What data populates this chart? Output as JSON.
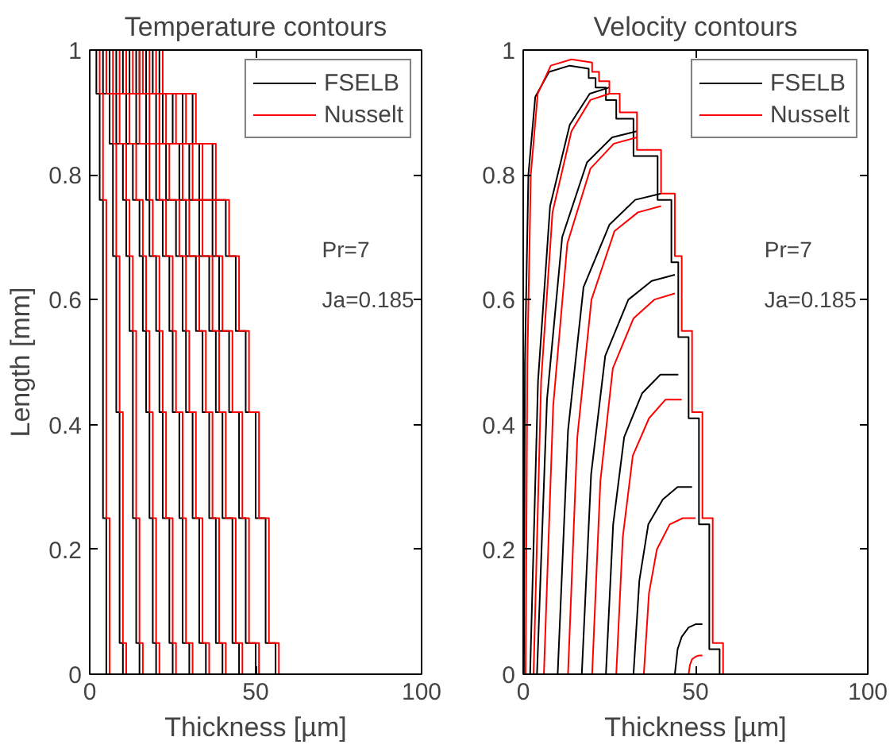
{
  "chart_data": [
    {
      "type": "line",
      "title": "Temperature contours",
      "xlabel": "Thickness [µm]",
      "ylabel": "Length [mm]",
      "xlim": [
        0,
        100
      ],
      "xticks": [
        0,
        50,
        100
      ],
      "ylim": [
        0,
        1
      ],
      "yticks": [
        0,
        0.2,
        0.4,
        0.6,
        0.8,
        1
      ],
      "grid": false,
      "legend": "top right",
      "annotations": [
        "Pr=7",
        "Ja=0.185"
      ],
      "series": [
        {
          "name": "FSELB",
          "color": "#000000",
          "x": [
            5,
            5,
            5,
            5,
            4,
            4,
            4,
            4,
            4,
            4,
            4,
            4,
            3,
            3,
            3,
            3,
            2,
            2
          ],
          "values": [
            0,
            0.05,
            0.05,
            0.25,
            0.25,
            0.42,
            0.42,
            0.55,
            0.55,
            0.67,
            0.67,
            0.76,
            0.76,
            0.85,
            0.85,
            0.93,
            0.93,
            1
          ]
        },
        {
          "color": "#000000",
          "x": [
            10,
            10,
            9,
            9,
            9,
            9,
            8,
            8,
            8,
            8,
            7,
            7,
            7,
            7,
            6,
            6,
            4,
            4
          ],
          "values": [
            0,
            0.05,
            0.05,
            0.25,
            0.25,
            0.42,
            0.42,
            0.55,
            0.55,
            0.67,
            0.67,
            0.76,
            0.76,
            0.85,
            0.85,
            0.93,
            0.93,
            1
          ]
        },
        {
          "color": "#000000",
          "x": [
            15,
            15,
            14,
            14,
            13,
            13,
            13,
            13,
            12,
            12,
            11,
            11,
            10,
            10,
            8,
            8,
            6,
            6
          ],
          "values": [
            0,
            0.05,
            0.05,
            0.25,
            0.25,
            0.42,
            0.42,
            0.55,
            0.55,
            0.67,
            0.67,
            0.76,
            0.76,
            0.85,
            0.85,
            0.93,
            0.93,
            1
          ]
        },
        {
          "color": "#000000",
          "x": [
            20,
            20,
            19,
            19,
            18,
            18,
            17,
            17,
            16,
            16,
            15,
            15,
            13,
            13,
            11,
            11,
            8,
            8
          ],
          "values": [
            0,
            0.05,
            0.05,
            0.25,
            0.25,
            0.42,
            0.42,
            0.55,
            0.55,
            0.67,
            0.67,
            0.76,
            0.76,
            0.85,
            0.85,
            0.93,
            0.93,
            1
          ]
        },
        {
          "color": "#000000",
          "x": [
            25,
            25,
            24,
            24,
            22,
            22,
            21,
            21,
            20,
            20,
            18,
            18,
            17,
            17,
            14,
            14,
            10,
            10
          ],
          "values": [
            0,
            0.05,
            0.05,
            0.25,
            0.25,
            0.42,
            0.42,
            0.55,
            0.55,
            0.67,
            0.67,
            0.76,
            0.76,
            0.85,
            0.85,
            0.93,
            0.93,
            1
          ]
        },
        {
          "color": "#000000",
          "x": [
            30,
            30,
            28,
            28,
            27,
            27,
            25,
            25,
            24,
            24,
            22,
            22,
            20,
            20,
            17,
            17,
            12,
            12
          ],
          "values": [
            0,
            0.05,
            0.05,
            0.25,
            0.25,
            0.42,
            0.42,
            0.55,
            0.55,
            0.67,
            0.67,
            0.76,
            0.76,
            0.85,
            0.85,
            0.93,
            0.93,
            1
          ]
        },
        {
          "color": "#000000",
          "x": [
            35,
            35,
            33,
            33,
            31,
            31,
            29,
            29,
            28,
            28,
            26,
            26,
            23,
            23,
            20,
            20,
            14,
            14
          ],
          "values": [
            0,
            0.05,
            0.05,
            0.25,
            0.25,
            0.42,
            0.42,
            0.55,
            0.55,
            0.67,
            0.67,
            0.76,
            0.76,
            0.85,
            0.85,
            0.93,
            0.93,
            1
          ]
        },
        {
          "color": "#000000",
          "x": [
            40,
            40,
            38,
            38,
            36,
            36,
            34,
            34,
            32,
            32,
            29,
            29,
            27,
            27,
            22,
            22,
            15,
            15
          ],
          "values": [
            0,
            0.05,
            0.05,
            0.25,
            0.25,
            0.42,
            0.42,
            0.55,
            0.55,
            0.67,
            0.67,
            0.76,
            0.76,
            0.85,
            0.85,
            0.93,
            0.93,
            1
          ]
        },
        {
          "color": "#000000",
          "x": [
            45,
            45,
            43,
            43,
            40,
            40,
            38,
            38,
            36,
            36,
            33,
            33,
            30,
            30,
            25,
            25,
            17,
            17
          ],
          "values": [
            0,
            0.05,
            0.05,
            0.25,
            0.25,
            0.42,
            0.42,
            0.55,
            0.55,
            0.67,
            0.67,
            0.76,
            0.76,
            0.85,
            0.85,
            0.93,
            0.93,
            1
          ]
        },
        {
          "color": "#000000",
          "x": [
            50,
            50,
            47,
            47,
            45,
            45,
            42,
            42,
            39,
            39,
            37,
            37,
            33,
            33,
            28,
            28,
            19,
            19
          ],
          "values": [
            0,
            0.05,
            0.05,
            0.25,
            0.25,
            0.42,
            0.42,
            0.55,
            0.55,
            0.67,
            0.67,
            0.76,
            0.76,
            0.85,
            0.85,
            0.93,
            0.93,
            1
          ]
        },
        {
          "color": "#000000",
          "x": [
            56,
            56,
            53,
            53,
            50,
            50,
            47,
            47,
            44,
            44,
            41,
            41,
            37,
            37,
            31,
            31,
            21,
            21,
            3
          ],
          "values": [
            0,
            0.05,
            0.05,
            0.25,
            0.25,
            0.42,
            0.42,
            0.55,
            0.55,
            0.67,
            0.67,
            0.76,
            0.76,
            0.85,
            0.85,
            0.93,
            0.93,
            1,
            1
          ]
        },
        {
          "name": "Nusselt",
          "color": "#ff0000",
          "x": [
            6,
            6,
            6,
            6,
            5,
            5,
            5,
            5,
            5,
            5,
            5,
            5,
            4,
            4,
            4,
            4,
            3,
            3
          ],
          "values": [
            0,
            0.05,
            0.05,
            0.25,
            0.25,
            0.42,
            0.42,
            0.55,
            0.55,
            0.67,
            0.67,
            0.76,
            0.76,
            0.85,
            0.85,
            0.93,
            0.93,
            1
          ]
        },
        {
          "color": "#ff0000",
          "x": [
            11,
            11,
            10,
            10,
            10,
            10,
            9,
            9,
            9,
            9,
            8,
            8,
            8,
            8,
            7,
            7,
            5,
            5
          ],
          "values": [
            0,
            0.05,
            0.05,
            0.25,
            0.25,
            0.42,
            0.42,
            0.55,
            0.55,
            0.67,
            0.67,
            0.76,
            0.76,
            0.85,
            0.85,
            0.93,
            0.93,
            1
          ]
        },
        {
          "color": "#ff0000",
          "x": [
            16,
            16,
            15,
            15,
            14,
            14,
            14,
            14,
            13,
            13,
            12,
            12,
            11,
            11,
            9,
            9,
            7,
            7
          ],
          "values": [
            0,
            0.05,
            0.05,
            0.25,
            0.25,
            0.42,
            0.42,
            0.55,
            0.55,
            0.67,
            0.67,
            0.76,
            0.76,
            0.85,
            0.85,
            0.93,
            0.93,
            1
          ]
        },
        {
          "color": "#ff0000",
          "x": [
            21,
            21,
            20,
            20,
            19,
            19,
            18,
            18,
            17,
            17,
            16,
            16,
            14,
            14,
            12,
            12,
            9,
            9
          ],
          "values": [
            0,
            0.05,
            0.05,
            0.25,
            0.25,
            0.42,
            0.42,
            0.55,
            0.55,
            0.67,
            0.67,
            0.76,
            0.76,
            0.85,
            0.85,
            0.93,
            0.93,
            1
          ]
        },
        {
          "color": "#ff0000",
          "x": [
            26,
            26,
            25,
            25,
            23,
            23,
            22,
            22,
            21,
            21,
            19,
            19,
            18,
            18,
            15,
            15,
            11,
            11
          ],
          "values": [
            0,
            0.05,
            0.05,
            0.25,
            0.25,
            0.42,
            0.42,
            0.55,
            0.55,
            0.67,
            0.67,
            0.76,
            0.76,
            0.85,
            0.85,
            0.93,
            0.93,
            1
          ]
        },
        {
          "color": "#ff0000",
          "x": [
            31,
            31,
            29,
            29,
            28,
            28,
            26,
            26,
            25,
            25,
            23,
            23,
            21,
            21,
            18,
            18,
            13,
            13
          ],
          "values": [
            0,
            0.05,
            0.05,
            0.25,
            0.25,
            0.42,
            0.42,
            0.55,
            0.55,
            0.67,
            0.67,
            0.76,
            0.76,
            0.85,
            0.85,
            0.93,
            0.93,
            1
          ]
        },
        {
          "color": "#ff0000",
          "x": [
            36,
            36,
            34,
            34,
            32,
            32,
            30,
            30,
            29,
            29,
            27,
            27,
            24,
            24,
            21,
            21,
            15,
            15
          ],
          "values": [
            0,
            0.05,
            0.05,
            0.25,
            0.25,
            0.42,
            0.42,
            0.55,
            0.55,
            0.67,
            0.67,
            0.76,
            0.76,
            0.85,
            0.85,
            0.93,
            0.93,
            1
          ]
        },
        {
          "color": "#ff0000",
          "x": [
            41,
            41,
            39,
            39,
            37,
            37,
            35,
            35,
            33,
            33,
            30,
            30,
            28,
            28,
            23,
            23,
            16,
            16
          ],
          "values": [
            0,
            0.05,
            0.05,
            0.25,
            0.25,
            0.42,
            0.42,
            0.55,
            0.55,
            0.67,
            0.67,
            0.76,
            0.76,
            0.85,
            0.85,
            0.93,
            0.93,
            1
          ]
        },
        {
          "color": "#ff0000",
          "x": [
            46,
            46,
            44,
            44,
            41,
            41,
            39,
            39,
            37,
            37,
            34,
            34,
            31,
            31,
            26,
            26,
            18,
            18
          ],
          "values": [
            0,
            0.05,
            0.05,
            0.25,
            0.25,
            0.42,
            0.42,
            0.55,
            0.55,
            0.67,
            0.67,
            0.76,
            0.76,
            0.85,
            0.85,
            0.93,
            0.93,
            1
          ]
        },
        {
          "color": "#ff0000",
          "x": [
            51,
            51,
            48,
            48,
            46,
            46,
            43,
            43,
            40,
            40,
            38,
            38,
            34,
            34,
            29,
            29,
            20,
            20
          ],
          "values": [
            0,
            0.05,
            0.05,
            0.25,
            0.25,
            0.42,
            0.42,
            0.55,
            0.55,
            0.67,
            0.67,
            0.76,
            0.76,
            0.85,
            0.85,
            0.93,
            0.93,
            1
          ]
        },
        {
          "color": "#ff0000",
          "x": [
            57,
            57,
            54,
            54,
            51,
            51,
            48,
            48,
            45,
            45,
            42,
            42,
            38,
            38,
            32,
            32,
            22,
            22,
            3
          ],
          "values": [
            0,
            0.05,
            0.05,
            0.25,
            0.25,
            0.42,
            0.42,
            0.55,
            0.55,
            0.67,
            0.67,
            0.76,
            0.76,
            0.85,
            0.85,
            0.93,
            0.93,
            1,
            1
          ]
        }
      ]
    },
    {
      "type": "line",
      "title": "Velocity contours",
      "xlabel": "Thickness [µm]",
      "xlim": [
        0,
        100
      ],
      "xticks": [
        0,
        50,
        100
      ],
      "ylim": [
        0,
        1
      ],
      "yticks": [
        0,
        0.2,
        0.4,
        0.6,
        0.8,
        1
      ],
      "grid": false,
      "legend": "top right",
      "annotations": [
        "Pr=7",
        "Ja=0.185"
      ],
      "series": [
        {
          "name": "FSELB",
          "color": "#000000",
          "x": [
            0.2,
            0.5,
            1.5,
            3.5,
            7.5,
            13.5,
            19,
            19,
            21,
            21,
            24,
            24,
            27,
            27,
            32,
            32,
            39,
            39,
            43,
            43,
            45,
            45,
            48,
            48,
            51,
            51,
            54,
            54,
            57,
            57
          ],
          "values": [
            0,
            0.5,
            0.8,
            0.925,
            0.965,
            0.975,
            0.97,
            0.955,
            0.955,
            0.94,
            0.94,
            0.92,
            0.92,
            0.89,
            0.89,
            0.83,
            0.83,
            0.76,
            0.76,
            0.66,
            0.66,
            0.54,
            0.54,
            0.41,
            0.41,
            0.24,
            0.24,
            0.04,
            0.04,
            0
          ]
        },
        {
          "color": "#000000",
          "x": [
            2,
            4.3,
            7.8,
            13.5,
            19.3,
            25
          ],
          "values": [
            0,
            0.47,
            0.75,
            0.88,
            0.93,
            0.94
          ]
        },
        {
          "color": "#000000",
          "x": [
            4,
            6.9,
            11.3,
            18.5,
            25.8,
            33
          ],
          "values": [
            0,
            0.44,
            0.7,
            0.82,
            0.86,
            0.87
          ]
        },
        {
          "color": "#000000",
          "x": [
            10,
            13,
            17.5,
            25,
            32.5,
            40
          ],
          "values": [
            0,
            0.39,
            0.62,
            0.72,
            0.76,
            0.77
          ]
        },
        {
          "color": "#000000",
          "x": [
            17,
            19.7,
            23.8,
            30.5,
            37.3,
            44
          ],
          "values": [
            0,
            0.32,
            0.51,
            0.6,
            0.63,
            0.64
          ]
        },
        {
          "color": "#000000",
          "x": [
            24,
            26.1,
            29.3,
            34.5,
            39.8,
            45
          ],
          "values": [
            0,
            0.24,
            0.38,
            0.45,
            0.48,
            0.48
          ]
        },
        {
          "color": "#000000",
          "x": [
            32,
            33.7,
            36.3,
            40.5,
            44.8,
            49
          ],
          "values": [
            0,
            0.15,
            0.24,
            0.28,
            0.3,
            0.3
          ]
        },
        {
          "color": "#000000",
          "x": [
            44,
            44.8,
            46,
            48,
            50,
            52
          ],
          "values": [
            0,
            0.04,
            0.06,
            0.075,
            0.08,
            0.08
          ]
        },
        {
          "name": "Nusselt",
          "color": "#ff0000",
          "x": [
            0.7,
            1.2,
            2.2,
            4.2,
            8,
            14,
            20,
            20,
            22,
            22,
            25,
            25,
            28,
            28,
            33,
            33,
            40,
            40,
            44,
            44,
            46,
            46,
            49,
            49,
            52,
            52,
            55,
            55,
            58,
            58
          ],
          "values": [
            0,
            0.5,
            0.8,
            0.93,
            0.975,
            0.985,
            0.98,
            0.965,
            0.965,
            0.95,
            0.95,
            0.93,
            0.93,
            0.9,
            0.9,
            0.84,
            0.84,
            0.77,
            0.77,
            0.67,
            0.67,
            0.55,
            0.55,
            0.42,
            0.42,
            0.25,
            0.25,
            0.05,
            0.05,
            0
          ]
        },
        {
          "color": "#ff0000",
          "x": [
            3,
            5.2,
            8.5,
            14,
            19.5,
            25
          ],
          "values": [
            0,
            0.47,
            0.74,
            0.87,
            0.92,
            0.93
          ]
        },
        {
          "color": "#ff0000",
          "x": [
            6,
            8.7,
            12.8,
            19.5,
            26.3,
            33
          ],
          "values": [
            0,
            0.43,
            0.69,
            0.81,
            0.85,
            0.86
          ]
        },
        {
          "color": "#ff0000",
          "x": [
            13,
            15.7,
            19.8,
            26.5,
            33.3,
            40
          ],
          "values": [
            0,
            0.38,
            0.6,
            0.71,
            0.74,
            0.75
          ]
        },
        {
          "color": "#ff0000",
          "x": [
            20,
            22.4,
            26,
            32,
            38,
            44
          ],
          "values": [
            0,
            0.31,
            0.49,
            0.57,
            0.6,
            0.61
          ]
        },
        {
          "color": "#ff0000",
          "x": [
            27,
            28.9,
            31.8,
            36.5,
            41.3,
            46
          ],
          "values": [
            0,
            0.22,
            0.35,
            0.41,
            0.44,
            0.44
          ]
        },
        {
          "color": "#ff0000",
          "x": [
            35,
            36.5,
            38.8,
            42.5,
            46.3,
            50
          ],
          "values": [
            0,
            0.13,
            0.2,
            0.24,
            0.25,
            0.25
          ]
        },
        {
          "color": "#ff0000",
          "x": [
            48,
            48.4,
            49,
            50,
            51,
            52
          ],
          "values": [
            0,
            0.015,
            0.024,
            0.028,
            0.03,
            0.03
          ]
        }
      ]
    }
  ]
}
